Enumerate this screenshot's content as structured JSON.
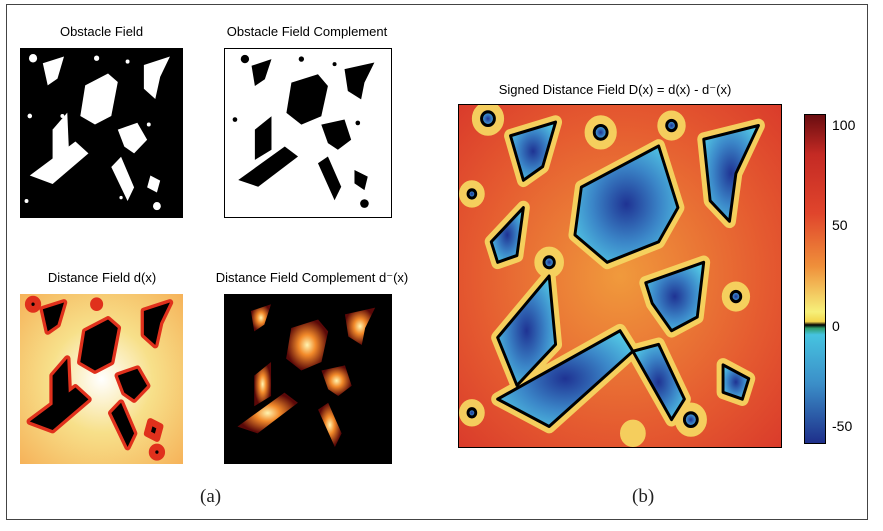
{
  "panels": {
    "obstacle_field": {
      "title": "Obstacle Field"
    },
    "obstacle_complement": {
      "title": "Obstacle Field Complement"
    },
    "distance_field": {
      "title": "Distance Field d(x)"
    },
    "distance_complement": {
      "title": "Distance Field Complement d⁻(x)"
    },
    "signed_field": {
      "title": "Signed Distance Field D(x) = d(x) - d⁻(x)"
    }
  },
  "captions": {
    "left": "(a)",
    "right": "(b)"
  },
  "colorbar": {
    "ticks": [
      "100",
      "50",
      "0",
      "-50"
    ]
  },
  "colors": {
    "deep_blue": "#1e2f8a",
    "cyan": "#46c3e0",
    "yellow": "#f6f07a",
    "orange": "#ee8a3a",
    "red": "#d9392a",
    "dark_red": "#6a0d10"
  }
}
